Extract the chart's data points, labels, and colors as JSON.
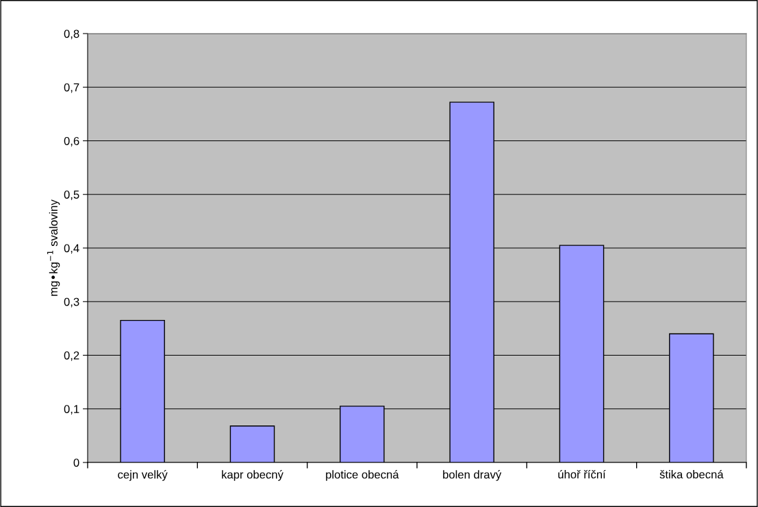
{
  "chart_data": {
    "type": "bar",
    "ylabel": "mg•kg$^{−1}$ svaloviny",
    "categories": [
      "cejn velký",
      "kapr obecný",
      "plotice obecná",
      "bolen dravý",
      "úhoř říční",
      "štika obecná"
    ],
    "values": [
      0.265,
      0.068,
      0.105,
      0.672,
      0.405,
      0.24
    ],
    "color": "#9999ff",
    "ylim": [
      0,
      0.8
    ],
    "yticks": [
      {
        "value": 0,
        "label": "0"
      },
      {
        "value": 0.1,
        "label": "0,1"
      },
      {
        "value": 0.2,
        "label": "0,2"
      },
      {
        "value": 0.3,
        "label": "0,3"
      },
      {
        "value": 0.4,
        "label": "0,4"
      },
      {
        "value": 0.5,
        "label": "0,5"
      },
      {
        "value": 0.6,
        "label": "0,6"
      },
      {
        "value": 0.7,
        "label": "0,7"
      },
      {
        "value": 0.8,
        "label": "0,8"
      }
    ],
    "grid": "y",
    "legend": false
  }
}
